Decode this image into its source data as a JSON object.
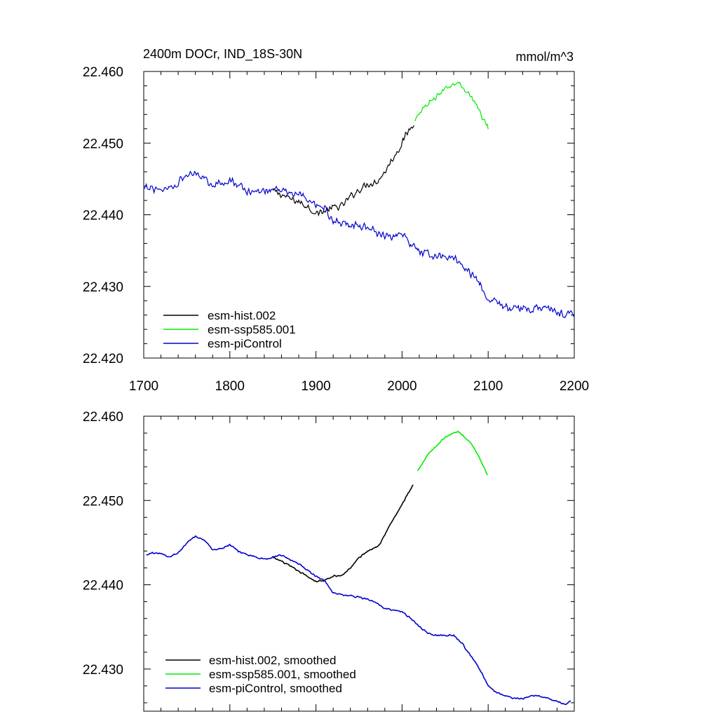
{
  "chart_data": [
    {
      "type": "line",
      "title": "2400m DOCr, IND_18S-30N",
      "units": "mmol/m^3",
      "xlim": [
        1700,
        2200
      ],
      "ylim": [
        22.42,
        22.46
      ],
      "x_ticks": [
        1700,
        1800,
        1900,
        2000,
        2100,
        2200
      ],
      "x_tick_labels": [
        "1700",
        "1800",
        "1900",
        "2000",
        "2100",
        "2200"
      ],
      "y_ticks": [
        22.42,
        22.43,
        22.44,
        22.45,
        22.46
      ],
      "y_tick_labels": [
        "22.420",
        "22.430",
        "22.440",
        "22.450",
        "22.460"
      ],
      "legend": [
        "esm-hist.002",
        "esm-ssp585.001",
        "esm-piControl"
      ],
      "series": [
        {
          "name": "esm-hist.002",
          "color": "#000000",
          "noise": 0.0006,
          "points": [
            [
              1850,
              22.4433
            ],
            [
              1860,
              22.4428
            ],
            [
              1870,
              22.4422
            ],
            [
              1880,
              22.4418
            ],
            [
              1890,
              22.4412
            ],
            [
              1900,
              22.4402
            ],
            [
              1910,
              22.4405
            ],
            [
              1920,
              22.441
            ],
            [
              1930,
              22.4412
            ],
            [
              1940,
              22.4425
            ],
            [
              1950,
              22.4435
            ],
            [
              1960,
              22.4443
            ],
            [
              1970,
              22.4446
            ],
            [
              1975,
              22.4452
            ],
            [
              1980,
              22.446
            ],
            [
              1990,
              22.448
            ],
            [
              2000,
              22.45
            ],
            [
              2005,
              22.4512
            ],
            [
              2014,
              22.453
            ]
          ]
        },
        {
          "name": "esm-ssp585.001",
          "color": "#00ee00",
          "noise": 0.0005,
          "points": [
            [
              2015,
              22.453
            ],
            [
              2020,
              22.454
            ],
            [
              2030,
              22.4555
            ],
            [
              2040,
              22.4565
            ],
            [
              2050,
              22.4575
            ],
            [
              2060,
              22.4582
            ],
            [
              2065,
              22.4585
            ],
            [
              2070,
              22.4578
            ],
            [
              2080,
              22.4565
            ],
            [
              2090,
              22.4545
            ],
            [
              2100,
              22.452
            ]
          ]
        },
        {
          "name": "esm-piControl",
          "color": "#0000cc",
          "noise": 0.0007,
          "points": [
            [
              1700,
              22.4435
            ],
            [
              1710,
              22.4438
            ],
            [
              1720,
              22.4436
            ],
            [
              1730,
              22.4438
            ],
            [
              1740,
              22.4445
            ],
            [
              1750,
              22.4455
            ],
            [
              1760,
              22.446
            ],
            [
              1770,
              22.4452
            ],
            [
              1780,
              22.4443
            ],
            [
              1790,
              22.4443
            ],
            [
              1800,
              22.445
            ],
            [
              1810,
              22.444
            ],
            [
              1820,
              22.4433
            ],
            [
              1830,
              22.4432
            ],
            [
              1840,
              22.4433
            ],
            [
              1850,
              22.4435
            ],
            [
              1860,
              22.4438
            ],
            [
              1870,
              22.443
            ],
            [
              1880,
              22.4428
            ],
            [
              1890,
              22.442
            ],
            [
              1900,
              22.441
            ],
            [
              1910,
              22.4408
            ],
            [
              1920,
              22.439
            ],
            [
              1930,
              22.4388
            ],
            [
              1940,
              22.4388
            ],
            [
              1950,
              22.4385
            ],
            [
              1960,
              22.4383
            ],
            [
              1970,
              22.4375
            ],
            [
              1980,
              22.4372
            ],
            [
              1990,
              22.437
            ],
            [
              2000,
              22.437
            ],
            [
              2010,
              22.436
            ],
            [
              2020,
              22.435
            ],
            [
              2030,
              22.4345
            ],
            [
              2040,
              22.4342
            ],
            [
              2050,
              22.434
            ],
            [
              2060,
              22.434
            ],
            [
              2070,
              22.433
            ],
            [
              2080,
              22.4318
            ],
            [
              2090,
              22.4305
            ],
            [
              2100,
              22.4285
            ],
            [
              2110,
              22.4278
            ],
            [
              2120,
              22.427
            ],
            [
              2130,
              22.4268
            ],
            [
              2140,
              22.4268
            ],
            [
              2150,
              22.4268
            ],
            [
              2160,
              22.4272
            ],
            [
              2170,
              22.4268
            ],
            [
              2180,
              22.4265
            ],
            [
              2190,
              22.4262
            ],
            [
              2200,
              22.4262
            ]
          ]
        }
      ]
    },
    {
      "type": "line",
      "xlim": [
        1700,
        2200
      ],
      "ylim": [
        22.425,
        22.46
      ],
      "x_ticks": [
        1700,
        1800,
        1900,
        2000,
        2100,
        2200
      ],
      "y_ticks": [
        22.43,
        22.44,
        22.45,
        22.46
      ],
      "y_tick_labels": [
        "22.430",
        "22.440",
        "22.450",
        "22.460"
      ],
      "legend": [
        "esm-hist.002, smoothed",
        "esm-ssp585.001, smoothed",
        "esm-piControl, smoothed"
      ],
      "series": [
        {
          "name": "esm-hist.002, smoothed",
          "color": "#000000",
          "noise": 0.00012,
          "points": [
            [
              1850,
              22.4432
            ],
            [
              1860,
              22.4428
            ],
            [
              1870,
              22.4422
            ],
            [
              1880,
              22.4416
            ],
            [
              1890,
              22.441
            ],
            [
              1900,
              22.4404
            ],
            [
              1910,
              22.4405
            ],
            [
              1920,
              22.441
            ],
            [
              1930,
              22.4411
            ],
            [
              1940,
              22.442
            ],
            [
              1950,
              22.4432
            ],
            [
              1960,
              22.444
            ],
            [
              1970,
              22.4445
            ],
            [
              1975,
              22.445
            ],
            [
              1980,
              22.446
            ],
            [
              1990,
              22.4478
            ],
            [
              2000,
              22.4495
            ],
            [
              2005,
              22.4505
            ],
            [
              2013,
              22.4518
            ]
          ]
        },
        {
          "name": "esm-ssp585.001, smoothed",
          "color": "#00ee00",
          "noise": 0.0001,
          "points": [
            [
              2018,
              22.4535
            ],
            [
              2030,
              22.4555
            ],
            [
              2040,
              22.4565
            ],
            [
              2050,
              22.4575
            ],
            [
              2060,
              22.458
            ],
            [
              2065,
              22.4582
            ],
            [
              2070,
              22.4578
            ],
            [
              2080,
              22.4568
            ],
            [
              2090,
              22.455
            ],
            [
              2099,
              22.453
            ]
          ]
        },
        {
          "name": "esm-piControl, smoothed",
          "color": "#0000cc",
          "noise": 0.00012,
          "points": [
            [
              1703,
              22.4435
            ],
            [
              1710,
              22.4438
            ],
            [
              1720,
              22.4437
            ],
            [
              1730,
              22.4433
            ],
            [
              1740,
              22.4438
            ],
            [
              1750,
              22.445
            ],
            [
              1760,
              22.4458
            ],
            [
              1770,
              22.4453
            ],
            [
              1780,
              22.4442
            ],
            [
              1790,
              22.4443
            ],
            [
              1800,
              22.4448
            ],
            [
              1810,
              22.444
            ],
            [
              1820,
              22.4435
            ],
            [
              1830,
              22.4433
            ],
            [
              1840,
              22.443
            ],
            [
              1850,
              22.4433
            ],
            [
              1860,
              22.4435
            ],
            [
              1870,
              22.443
            ],
            [
              1880,
              22.4425
            ],
            [
              1890,
              22.4418
            ],
            [
              1900,
              22.441
            ],
            [
              1910,
              22.4405
            ],
            [
              1920,
              22.439
            ],
            [
              1930,
              22.4388
            ],
            [
              1940,
              22.4387
            ],
            [
              1950,
              22.4385
            ],
            [
              1960,
              22.4383
            ],
            [
              1970,
              22.4378
            ],
            [
              1980,
              22.4372
            ],
            [
              1990,
              22.437
            ],
            [
              2000,
              22.4368
            ],
            [
              2010,
              22.436
            ],
            [
              2020,
              22.435
            ],
            [
              2030,
              22.4343
            ],
            [
              2040,
              22.434
            ],
            [
              2050,
              22.434
            ],
            [
              2060,
              22.434
            ],
            [
              2070,
              22.433
            ],
            [
              2080,
              22.4315
            ],
            [
              2090,
              22.43
            ],
            [
              2100,
              22.428
            ],
            [
              2110,
              22.4272
            ],
            [
              2120,
              22.4268
            ],
            [
              2130,
              22.4265
            ],
            [
              2140,
              22.4265
            ],
            [
              2150,
              22.4268
            ],
            [
              2160,
              22.4268
            ],
            [
              2170,
              22.4265
            ],
            [
              2180,
              22.4262
            ],
            [
              2190,
              22.4258
            ],
            [
              2196,
              22.4262
            ]
          ]
        }
      ]
    }
  ]
}
